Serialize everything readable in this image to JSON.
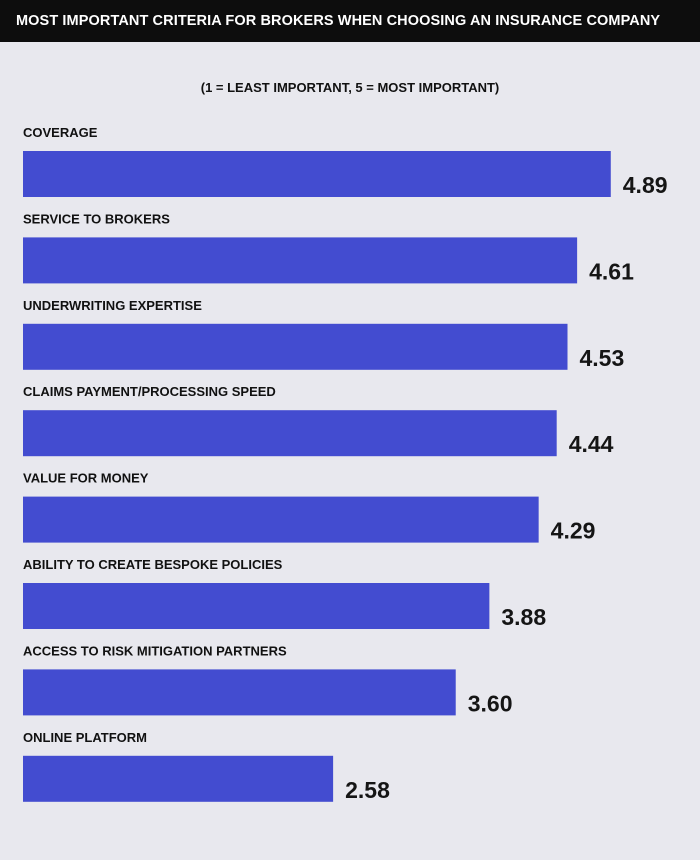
{
  "header": {
    "title": "MOST IMPORTANT CRITERIA FOR BROKERS WHEN CHOOSING AN INSURANCE COMPANY"
  },
  "colors": {
    "bar": "#434cd0",
    "header_bg": "#0d0d0d",
    "background": "#e8e8ee"
  },
  "chart_data": {
    "type": "bar",
    "orientation": "horizontal",
    "title": "MOST IMPORTANT CRITERIA FOR BROKERS WHEN CHOOSING AN INSURANCE COMPANY",
    "subtitle": "(1 = LEAST IMPORTANT, 5 = MOST IMPORTANT)",
    "categories": [
      "COVERAGE",
      "SERVICE TO BROKERS",
      "UNDERWRITING EXPERTISE",
      "CLAIMS PAYMENT/PROCESSING SPEED",
      "VALUE FOR MONEY",
      "ABILITY TO CREATE BESPOKE POLICIES",
      "ACCESS TO RISK MITIGATION PARTNERS",
      "ONLINE PLATFORM"
    ],
    "values": [
      4.89,
      4.61,
      4.53,
      4.44,
      4.29,
      3.88,
      3.6,
      2.58
    ],
    "value_labels": [
      "4.89",
      "4.61",
      "4.53",
      "4.44",
      "4.29",
      "3.88",
      "3.60",
      "2.58"
    ],
    "xlim": [
      0,
      5
    ],
    "grid": false,
    "legend": "none"
  }
}
